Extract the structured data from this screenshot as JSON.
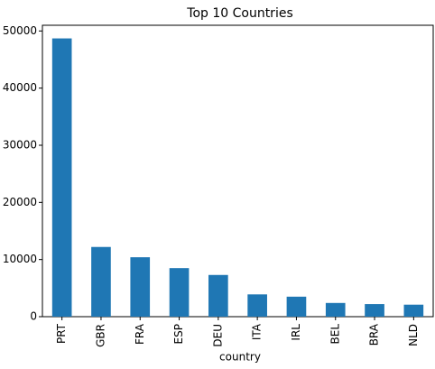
{
  "chart_data": {
    "type": "bar",
    "title": "Top 10 Countries",
    "x_label": "country",
    "categories": [
      "PRT",
      "GBR",
      "FRA",
      "ESP",
      "DEU",
      "ITA",
      "IRL",
      "BEL",
      "BRA",
      "NLD"
    ],
    "values": [
      48700,
      12200,
      10400,
      8500,
      7300,
      3900,
      3500,
      2400,
      2200,
      2100
    ],
    "color": "#1f77b4",
    "ylim": [
      0,
      51000
    ],
    "yticks": [
      0,
      10000,
      20000,
      30000,
      40000,
      50000
    ],
    "grid": false
  }
}
